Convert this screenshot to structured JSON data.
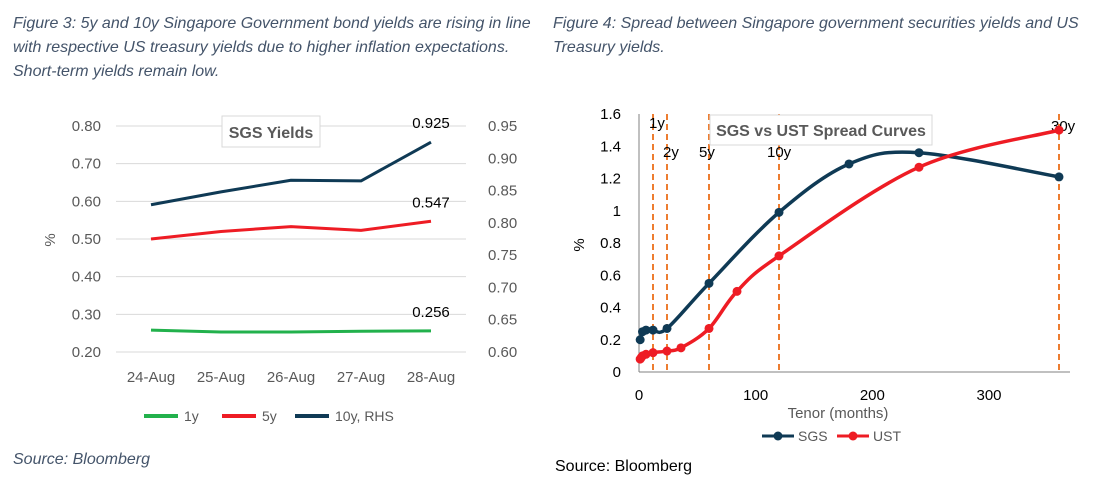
{
  "left": {
    "caption": "Figure 3: 5y and 10y Singapore Government bond yields are rising in line with respective US treasury yields due to higher inflation expectations. Short-term yields remain low.",
    "source": "Source: Bloomberg",
    "colors": {
      "1y": "#22b14c",
      "5y": "#ee1c24",
      "10y": "#0f3a55"
    },
    "chart_data": {
      "type": "line",
      "title": "SGS Yields",
      "categories": [
        "24-Aug",
        "25-Aug",
        "26-Aug",
        "27-Aug",
        "28-Aug"
      ],
      "ylabel": "%",
      "ylim": [
        0.2,
        0.8
      ],
      "yticks": [
        "0.80",
        "0.70",
        "0.60",
        "0.50",
        "0.40",
        "0.30",
        "0.20"
      ],
      "y2lim": [
        0.6,
        0.95
      ],
      "y2ticks": [
        "0.95",
        "0.90",
        "0.85",
        "0.80",
        "0.75",
        "0.70",
        "0.65",
        "0.60"
      ],
      "grid": true,
      "legend_position": "bottom",
      "series": [
        {
          "name": "1y",
          "axis": "left",
          "values": [
            0.258,
            0.253,
            0.253,
            0.255,
            0.256
          ]
        },
        {
          "name": "5y",
          "axis": "left",
          "values": [
            0.5,
            0.52,
            0.533,
            0.523,
            0.547
          ]
        },
        {
          "name": "10y, RHS",
          "axis": "right",
          "values": [
            0.828,
            0.848,
            0.866,
            0.865,
            0.925
          ]
        }
      ],
      "annotations": [
        "0.925",
        "0.547",
        "0.256"
      ]
    }
  },
  "right": {
    "caption": "Figure 4: Spread between Singapore government securities yields and US Treasury yields.",
    "source": "Source: Bloomberg",
    "colors": {
      "SGS": "#0f3a55",
      "UST": "#ee1c24",
      "markers": "#ed7d31"
    },
    "chart_data": {
      "type": "scatter",
      "title": "SGS vs UST Spread Curves",
      "xlabel": "Tenor (months)",
      "ylabel": "%",
      "xlim": [
        0,
        360
      ],
      "xticks": [
        "0",
        "100",
        "200",
        "300"
      ],
      "ylim": [
        0,
        1.6
      ],
      "yticks": [
        "1.6",
        "1.4",
        "1.2",
        "1",
        "0.8",
        "0.6",
        "0.4",
        "0.2",
        "0"
      ],
      "grid": false,
      "legend_position": "bottom",
      "tenor_markers": [
        {
          "label": "1y",
          "x": 12
        },
        {
          "label": "2y",
          "x": 24
        },
        {
          "label": "5y",
          "x": 60
        },
        {
          "label": "10y",
          "x": 120
        },
        {
          "label": "30y",
          "x": 360
        }
      ],
      "series": [
        {
          "name": "SGS",
          "points": [
            [
              1,
              0.2
            ],
            [
              3,
              0.25
            ],
            [
              6,
              0.26
            ],
            [
              12,
              0.26
            ],
            [
              24,
              0.27
            ],
            [
              60,
              0.55
            ],
            [
              120,
              0.99
            ],
            [
              180,
              1.29
            ],
            [
              240,
              1.36
            ],
            [
              360,
              1.21
            ]
          ]
        },
        {
          "name": "UST",
          "points": [
            [
              1,
              0.08
            ],
            [
              2,
              0.09
            ],
            [
              3,
              0.1
            ],
            [
              6,
              0.11
            ],
            [
              12,
              0.12
            ],
            [
              24,
              0.13
            ],
            [
              36,
              0.15
            ],
            [
              60,
              0.27
            ],
            [
              84,
              0.5
            ],
            [
              120,
              0.72
            ],
            [
              240,
              1.27
            ],
            [
              360,
              1.5
            ]
          ]
        }
      ]
    }
  }
}
